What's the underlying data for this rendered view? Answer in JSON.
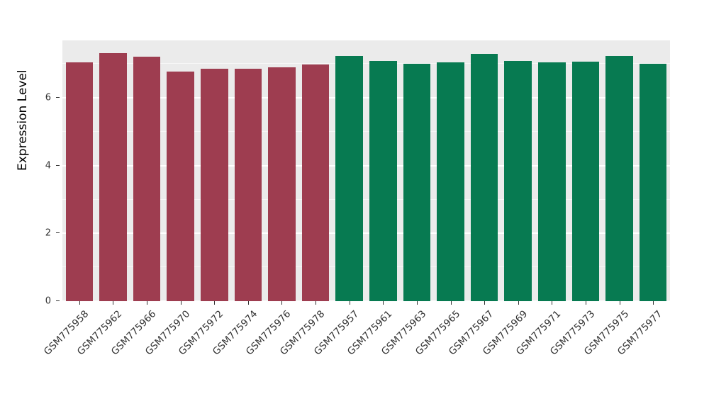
{
  "chart_data": {
    "type": "bar",
    "title": "",
    "xlabel": "",
    "ylabel": "Expression Level",
    "ylim": [
      0,
      7.7
    ],
    "yticks": [
      "0",
      "2",
      "4",
      "6"
    ],
    "ytick_values": [
      0,
      2,
      4,
      6
    ],
    "minor_gridlines": [
      1,
      3,
      5,
      7
    ],
    "grid": true,
    "legend_position": "none",
    "panel_background": "#ebebeb",
    "gridline_color": "#ffffff",
    "categories": [
      "GSM775958",
      "GSM775962",
      "GSM775966",
      "GSM775970",
      "GSM775972",
      "GSM775974",
      "GSM775976",
      "GSM775978",
      "GSM775957",
      "GSM775961",
      "GSM775963",
      "GSM775965",
      "GSM775967",
      "GSM775969",
      "GSM775971",
      "GSM775973",
      "GSM775975",
      "GSM775977"
    ],
    "values": [
      7.05,
      7.32,
      7.21,
      6.79,
      6.86,
      6.86,
      6.9,
      6.98,
      7.23,
      7.09,
      7.0,
      7.05,
      7.3,
      7.09,
      7.05,
      7.07,
      7.25,
      7.0
    ],
    "group_split_index": 8,
    "colors": {
      "group1": "#9e3d50",
      "group2": "#077a51"
    }
  }
}
